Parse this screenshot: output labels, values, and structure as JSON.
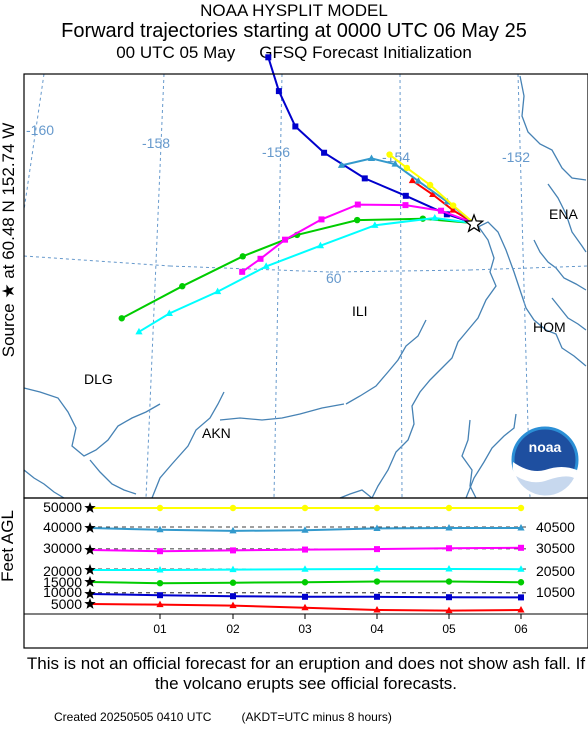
{
  "header": {
    "line1": "NOAA HYSPLIT MODEL",
    "line2": "Forward trajectories starting at 0000 UTC 06 May 25",
    "line3a": "00 UTC 05 May",
    "line3b": "GFSQ  Forecast Initialization"
  },
  "source_label": "Source ★ at   60.48 N  152.74 W",
  "map": {
    "longitude_labels": [
      "-160",
      "-158",
      "-156",
      "-154",
      "-152"
    ],
    "latitude_labels": [
      "60"
    ],
    "places": [
      "ENA",
      "ILI",
      "HOM",
      "DLG",
      "AKN"
    ],
    "logo_text": "noaa",
    "colors": {
      "land": "#ffffff",
      "coast": "#4682b4",
      "grid": "#6699cc",
      "frame": "#000000"
    }
  },
  "trajectories": [
    {
      "color": "#ff0000",
      "marker": "triangle",
      "points": [
        [
          -152.74,
          60.48
        ],
        [
          -153.1,
          60.55
        ],
        [
          -153.45,
          60.64
        ],
        [
          -153.8,
          60.72
        ]
      ]
    },
    {
      "color": "#0000cc",
      "marker": "square",
      "points": [
        [
          -152.74,
          60.48
        ],
        [
          -153.2,
          60.52
        ],
        [
          -153.9,
          60.62
        ],
        [
          -154.6,
          60.72
        ],
        [
          -155.3,
          60.88
        ],
        [
          -155.8,
          61.05
        ],
        [
          -156.1,
          61.28
        ],
        [
          -156.3,
          61.5
        ]
      ]
    },
    {
      "color": "#00cc00",
      "marker": "circle",
      "points": [
        [
          -152.74,
          60.48
        ],
        [
          -153.6,
          60.48
        ],
        [
          -154.7,
          60.45
        ],
        [
          -155.7,
          60.35
        ],
        [
          -156.6,
          60.22
        ],
        [
          -157.6,
          60.05
        ],
        [
          -158.6,
          59.88
        ]
      ]
    },
    {
      "color": "#00ffff",
      "marker": "triangle",
      "points": [
        [
          -152.74,
          60.48
        ],
        [
          -153.4,
          60.49
        ],
        [
          -154.4,
          60.42
        ],
        [
          -155.3,
          60.28
        ],
        [
          -156.2,
          60.15
        ],
        [
          -157.0,
          60.0
        ],
        [
          -157.8,
          59.88
        ],
        [
          -158.3,
          59.78
        ]
      ]
    },
    {
      "color": "#ff00ff",
      "marker": "square",
      "points": [
        [
          -152.74,
          60.48
        ],
        [
          -153.3,
          60.54
        ],
        [
          -153.9,
          60.56
        ],
        [
          -154.7,
          60.55
        ],
        [
          -155.3,
          60.45
        ],
        [
          -155.9,
          60.32
        ],
        [
          -156.3,
          60.2
        ],
        [
          -156.6,
          60.12
        ]
      ]
    },
    {
      "color": "#3399cc",
      "marker": "triangle",
      "points": [
        [
          -152.74,
          60.48
        ],
        [
          -153.2,
          60.6
        ],
        [
          -153.7,
          60.72
        ],
        [
          -154.1,
          60.82
        ],
        [
          -154.5,
          60.85
        ],
        [
          -155.0,
          60.8
        ]
      ]
    },
    {
      "color": "#ffff00",
      "marker": "circle",
      "points": [
        [
          -152.74,
          60.48
        ],
        [
          -153.1,
          60.58
        ],
        [
          -153.5,
          60.7
        ],
        [
          -153.9,
          60.8
        ],
        [
          -154.2,
          60.88
        ]
      ]
    }
  ],
  "vertical": {
    "left_heights": [
      "50000",
      "40000",
      "30000",
      "20000",
      "15000",
      "10000",
      "5000"
    ],
    "right_heights": [
      "40500",
      "30500",
      "20500",
      "10500"
    ],
    "axis_label": "Feet AGL",
    "time_labels": [
      "01",
      "02",
      "03",
      "04",
      "05",
      "06"
    ],
    "series": [
      {
        "color": "#ff0000",
        "marker": "triangle",
        "values": [
          5000,
          4700,
          4200,
          3100,
          2000,
          1700,
          2000
        ]
      },
      {
        "color": "#0000cc",
        "marker": "square",
        "values": [
          10000,
          9400,
          8900,
          8600,
          8600,
          8400,
          8300
        ]
      },
      {
        "color": "#00cc00",
        "marker": "circle",
        "values": [
          15000,
          14500,
          14700,
          14900,
          15200,
          15200,
          14900
        ]
      },
      {
        "color": "#00ffff",
        "marker": "triangle",
        "values": [
          20000,
          20000,
          20200,
          20400,
          20500,
          20500,
          20400
        ]
      },
      {
        "color": "#ff00ff",
        "marker": "square",
        "values": [
          30000,
          29400,
          29800,
          30200,
          30400,
          30800,
          31000
        ]
      },
      {
        "color": "#3399cc",
        "marker": "triangle",
        "values": [
          40000,
          39200,
          38700,
          39000,
          39800,
          40000,
          40000
        ]
      },
      {
        "color": "#ffff00",
        "marker": "circle",
        "values": [
          50000,
          50000,
          50000,
          50000,
          50000,
          50000,
          50000
        ]
      }
    ]
  },
  "disclaimer": "This is not an official forecast for an eruption and does not show ash fall. If the volcano erupts see official forecasts.",
  "footer": {
    "created": "Created 20250505 0410 UTC",
    "note": "(AKDT=UTC minus 8 hours)"
  }
}
